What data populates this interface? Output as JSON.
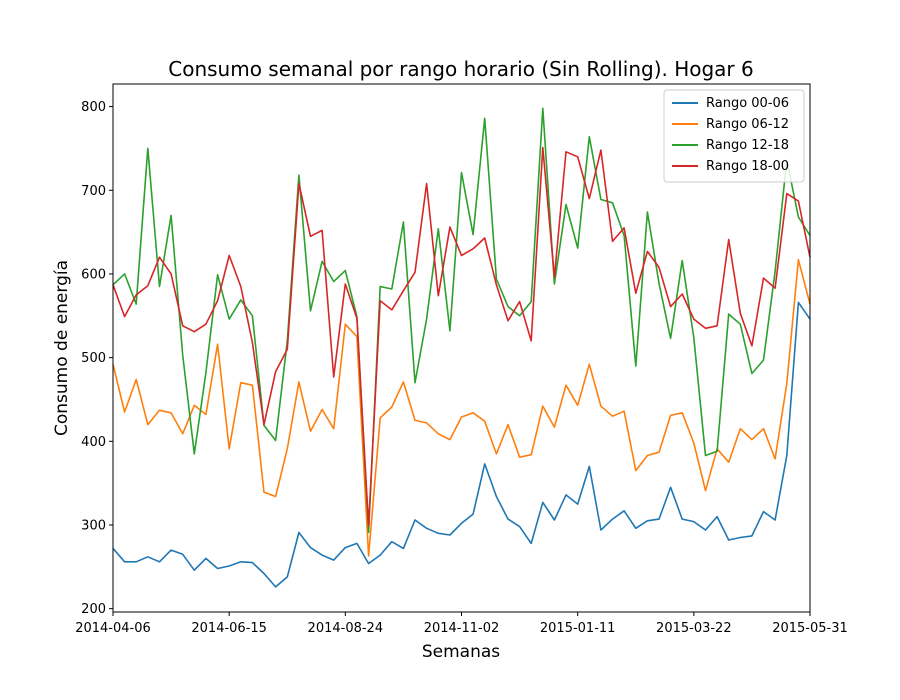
{
  "chart_data": {
    "type": "line",
    "title": "Consumo semanal por rango horario (Sin Rolling). Hogar 6",
    "xlabel": "Semanas",
    "ylabel": "Consumo de energía",
    "x_start": "2014-04-06",
    "x_end": "2015-05-31",
    "x_ticks": [
      "2014-04-06",
      "2014-06-15",
      "2014-08-24",
      "2014-11-02",
      "2015-01-11",
      "2015-03-22",
      "2015-05-31"
    ],
    "ylim": [
      196,
      827
    ],
    "y_ticks": [
      200,
      300,
      400,
      500,
      600,
      700,
      800
    ],
    "legend_position": "top-right",
    "series": [
      {
        "name": "Rango 00-06",
        "color": "#1f77b4",
        "values": [
          272,
          256,
          256,
          262,
          256,
          270,
          265,
          246,
          260,
          248,
          251,
          256,
          255,
          242,
          226,
          238,
          291,
          273,
          264,
          258,
          273,
          278,
          254,
          264,
          280,
          272,
          306,
          296,
          290,
          288,
          302,
          313,
          373,
          334,
          307,
          298,
          278,
          327,
          306,
          336,
          325,
          370,
          294,
          307,
          317,
          296,
          305,
          307,
          345,
          307,
          304,
          294,
          310,
          282,
          285,
          287,
          316,
          306,
          383,
          566,
          546
        ]
      },
      {
        "name": "Rango 06-12",
        "color": "#ff7f0e",
        "values": [
          492,
          435,
          474,
          420,
          437,
          434,
          409,
          443,
          432,
          516,
          391,
          470,
          467,
          339,
          334,
          391,
          471,
          412,
          438,
          415,
          540,
          525,
          263,
          428,
          441,
          471,
          425,
          422,
          409,
          402,
          429,
          434,
          424,
          385,
          420,
          381,
          384,
          442,
          417,
          467,
          443,
          492,
          442,
          430,
          436,
          365,
          383,
          387,
          431,
          434,
          398,
          341,
          391,
          375,
          415,
          402,
          415,
          379,
          469,
          617,
          564
        ]
      },
      {
        "name": "Rango 12-18",
        "color": "#2ca02c",
        "values": [
          587,
          600,
          564,
          750,
          585,
          670,
          503,
          385,
          482,
          599,
          546,
          569,
          550,
          419,
          401,
          520,
          718,
          556,
          615,
          591,
          604,
          549,
          291,
          585,
          582,
          662,
          470,
          546,
          654,
          532,
          721,
          647,
          786,
          594,
          561,
          550,
          567,
          798,
          588,
          683,
          631,
          764,
          689,
          685,
          646,
          490,
          674,
          589,
          523,
          616,
          524,
          383,
          388,
          552,
          540,
          481,
          497,
          603,
          736,
          668,
          646
        ]
      },
      {
        "name": "Rango 18-00",
        "color": "#d62728",
        "values": [
          587,
          549,
          575,
          586,
          620,
          600,
          538,
          531,
          540,
          568,
          622,
          585,
          518,
          420,
          483,
          510,
          708,
          645,
          652,
          477,
          588,
          547,
          299,
          568,
          557,
          580,
          602,
          708,
          574,
          656,
          622,
          630,
          643,
          587,
          544,
          567,
          520,
          751,
          596,
          746,
          740,
          690,
          748,
          639,
          655,
          577,
          627,
          608,
          561,
          576,
          546,
          535,
          538,
          641,
          553,
          514,
          595,
          583,
          696,
          687,
          620
        ]
      }
    ]
  }
}
